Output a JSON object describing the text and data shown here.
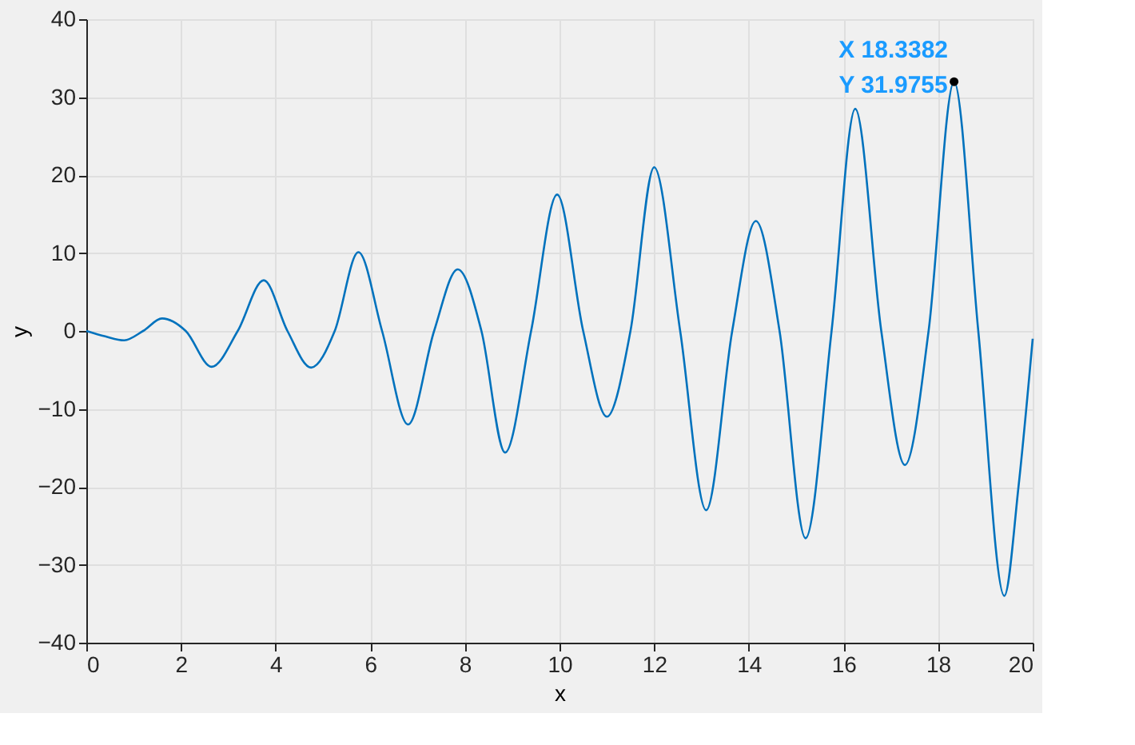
{
  "chart_data": {
    "type": "line",
    "xlabel": "x",
    "ylabel": "y",
    "xlim": [
      0,
      20
    ],
    "ylim": [
      -40,
      40
    ],
    "xticks": [
      0,
      2,
      4,
      6,
      8,
      10,
      12,
      14,
      16,
      18,
      20
    ],
    "yticks": [
      -40,
      -30,
      -20,
      -10,
      0,
      10,
      20,
      30,
      40
    ],
    "grid": true,
    "line_style": "solid",
    "marker": "none",
    "series": [
      {
        "color": "#0072bd",
        "x": [
          0,
          0.4,
          0.8,
          1.2,
          1.6,
          2.1,
          2.65,
          3.2,
          3.75,
          4.25,
          4.75,
          5.25,
          5.75,
          6.25,
          6.8,
          7.35,
          7.85,
          8.35,
          8.85,
          9.4,
          9.95,
          10.5,
          11.0,
          11.5,
          12.0,
          12.55,
          13.1,
          13.65,
          14.15,
          14.65,
          15.2,
          15.75,
          16.25,
          16.8,
          17.3,
          17.8,
          18.3382,
          18.85,
          19.4,
          19.7,
          20
        ],
        "values": [
          0,
          -0.7,
          -1.2,
          0,
          1.6,
          0,
          -4.6,
          0,
          6.5,
          0,
          -4.7,
          0,
          10.1,
          0,
          -12,
          0,
          7.9,
          0,
          -15.6,
          0,
          17.5,
          0,
          -11,
          0,
          21,
          0,
          -23,
          0,
          14.1,
          0,
          -26.6,
          0,
          28.5,
          0,
          -17.2,
          0,
          31.9755,
          0,
          -34,
          -20,
          -1
        ]
      }
    ],
    "annotations": [
      {
        "text": "X 18.3382\nY 31.9755",
        "x": 18.3382,
        "y": 31.9755
      }
    ]
  }
}
